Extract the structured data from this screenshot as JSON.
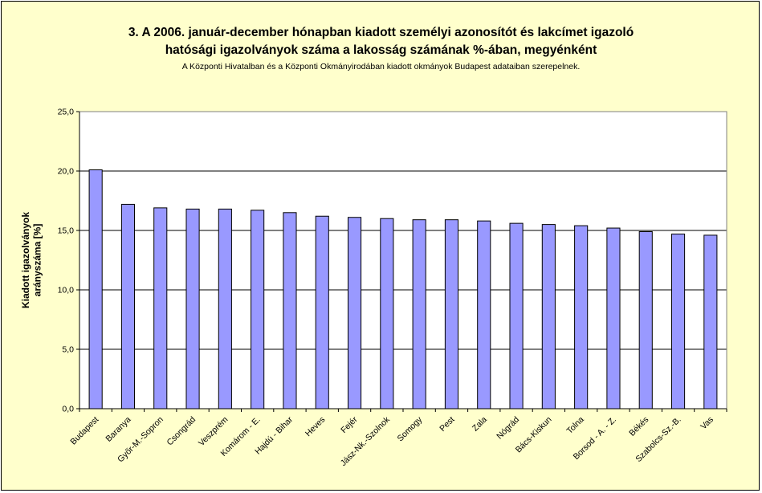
{
  "chart_data": {
    "type": "bar",
    "title_lines": [
      "3. A 2006. január-december hónapban kiadott személyi azonosítót és lakcímet igazoló",
      "hatósági igazolványok száma a lakosság  számának %-ában, megyénként"
    ],
    "subtitle": "A Központi Hivatalban és a Központi Okmányirodában kiadott okmányok Budapest adataiban szerepelnek.",
    "ylabel_lines": [
      "Kiadott igazolványok",
      "arányszáma [%]"
    ],
    "xlabel": "",
    "ylim": [
      0,
      25
    ],
    "yticks": [
      0,
      5,
      10,
      15,
      20,
      25
    ],
    "ytick_labels": [
      "0,0",
      "5,0",
      "10,0",
      "15,0",
      "20,0",
      "25,0"
    ],
    "grid": true,
    "bar_color": "#9999ff",
    "plot_background": "#ffffff",
    "chart_background": "#ffffcc",
    "categories": [
      "Budapest",
      "Baranya",
      "Győr-M.-Sopron",
      "Csongrád",
      "Veszprém",
      "Komárom - E.",
      "Hajdú - Bihar",
      "Heves",
      "Fejér",
      "Jász-Nk.-Szolnok",
      "Somogy",
      "Pest",
      "Zala",
      "Nógrád",
      "Bács-Kiskun",
      "Tolna",
      "Borsod - A. - Z.",
      "Békés",
      "Szabolcs-Sz.-B.",
      "Vas"
    ],
    "values": [
      20.1,
      17.2,
      16.9,
      16.8,
      16.8,
      16.7,
      16.5,
      16.2,
      16.1,
      16.0,
      15.9,
      15.9,
      15.8,
      15.6,
      15.5,
      15.4,
      15.2,
      14.9,
      14.7,
      14.6
    ]
  }
}
